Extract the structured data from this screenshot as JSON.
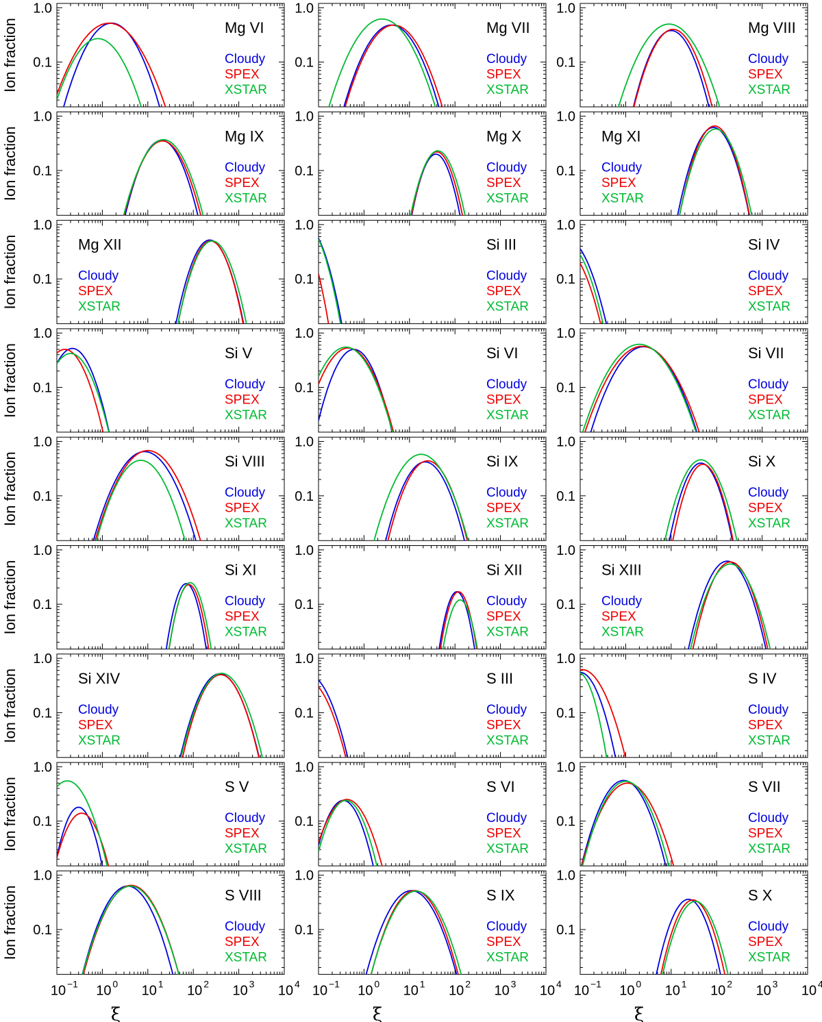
{
  "figure": {
    "y_axis_label": "Ion fraction",
    "x_axis_label": "ξ",
    "ytick_labels": [
      "1.0",
      "0.1"
    ],
    "xtick_exponents": [
      "−1",
      "0",
      "1",
      "2",
      "3",
      "4"
    ],
    "xtick_base": "10",
    "legend": [
      "Cloudy",
      "SPEX",
      "XSTAR"
    ]
  },
  "chart_data": {
    "type": "line",
    "xscale": "log",
    "yscale": "log",
    "xlim": [
      0.1,
      10000
    ],
    "ylim": [
      0.015,
      1.2
    ],
    "series_colors": {
      "Cloudy": "#0000dd",
      "SPEX": "#ee0000",
      "XSTAR": "#00bb33"
    },
    "note": "Each curve modeled as a log-parabola: fraction = peak * 10^(-((log10(xi) - log10(peak_xi)) / width)^2), width in decades",
    "panels": [
      {
        "ion": "Mg VI",
        "legend_side": "right",
        "series": [
          {
            "name": "Cloudy",
            "peak_xi": 1.6,
            "peak": 0.52,
            "width": 0.85
          },
          {
            "name": "SPEX",
            "peak_xi": 1.4,
            "peak": 0.52,
            "width": 1.0
          },
          {
            "name": "XSTAR",
            "peak_xi": 0.8,
            "peak": 0.27,
            "width": 0.85
          }
        ]
      },
      {
        "ion": "Mg VII",
        "legend_side": "right",
        "series": [
          {
            "name": "Cloudy",
            "peak_xi": 4.0,
            "peak": 0.48,
            "width": 0.85
          },
          {
            "name": "SPEX",
            "peak_xi": 4.5,
            "peak": 0.48,
            "width": 0.87
          },
          {
            "name": "XSTAR",
            "peak_xi": 2.5,
            "peak": 0.62,
            "width": 0.92
          }
        ]
      },
      {
        "ion": "Mg VIII",
        "legend_side": "right",
        "series": [
          {
            "name": "Cloudy",
            "peak_xi": 10,
            "peak": 0.38,
            "width": 0.7
          },
          {
            "name": "SPEX",
            "peak_xi": 11,
            "peak": 0.4,
            "width": 0.72
          },
          {
            "name": "XSTAR",
            "peak_xi": 9,
            "peak": 0.5,
            "width": 0.9
          }
        ]
      },
      {
        "ion": "Mg IX",
        "legend_side": "right",
        "series": [
          {
            "name": "Cloudy",
            "peak_xi": 20,
            "peak": 0.36,
            "width": 0.68
          },
          {
            "name": "SPEX",
            "peak_xi": 21,
            "peak": 0.35,
            "width": 0.72
          },
          {
            "name": "XSTAR",
            "peak_xi": 22,
            "peak": 0.37,
            "width": 0.74
          }
        ]
      },
      {
        "ion": "Mg X",
        "legend_side": "right",
        "series": [
          {
            "name": "Cloudy",
            "peak_xi": 38,
            "peak": 0.2,
            "width": 0.5
          },
          {
            "name": "SPEX",
            "peak_xi": 40,
            "peak": 0.22,
            "width": 0.52
          },
          {
            "name": "XSTAR",
            "peak_xi": 42,
            "peak": 0.23,
            "width": 0.55
          }
        ]
      },
      {
        "ion": "Mg XI",
        "legend_side": "left",
        "series": [
          {
            "name": "Cloudy",
            "peak_xi": 85,
            "peak": 0.62,
            "width": 0.62
          },
          {
            "name": "SPEX",
            "peak_xi": 90,
            "peak": 0.66,
            "width": 0.6
          },
          {
            "name": "XSTAR",
            "peak_xi": 95,
            "peak": 0.58,
            "width": 0.63
          }
        ]
      },
      {
        "ion": "Mg XII",
        "legend_side": "left",
        "series": [
          {
            "name": "Cloudy",
            "peak_xi": 230,
            "peak": 0.52,
            "width": 0.6
          },
          {
            "name": "SPEX",
            "peak_xi": 240,
            "peak": 0.5,
            "width": 0.58
          },
          {
            "name": "XSTAR",
            "peak_xi": 260,
            "peak": 0.5,
            "width": 0.61
          }
        ]
      },
      {
        "ion": "Si III",
        "legend_side": "right",
        "series": [
          {
            "name": "Cloudy",
            "peak_xi": 0.05,
            "peak": 1.0,
            "width": 0.6
          },
          {
            "name": "SPEX",
            "peak_xi": 0.03,
            "peak": 1.0,
            "width": 0.55
          },
          {
            "name": "XSTAR",
            "peak_xi": 0.05,
            "peak": 1.0,
            "width": 0.58
          }
        ]
      },
      {
        "ion": "Si IV",
        "legend_side": "right",
        "series": [
          {
            "name": "Cloudy",
            "peak_xi": 0.05,
            "peak": 0.55,
            "width": 0.7
          },
          {
            "name": "SPEX",
            "peak_xi": 0.045,
            "peak": 0.35,
            "width": 0.68
          },
          {
            "name": "XSTAR",
            "peak_xi": 0.05,
            "peak": 0.45,
            "width": 0.66
          }
        ]
      },
      {
        "ion": "Si V",
        "legend_side": "right",
        "series": [
          {
            "name": "Cloudy",
            "peak_xi": 0.22,
            "peak": 0.52,
            "width": 0.65
          },
          {
            "name": "SPEX",
            "peak_xi": 0.15,
            "peak": 0.5,
            "width": 0.68
          },
          {
            "name": "XSTAR",
            "peak_xi": 0.2,
            "peak": 0.42,
            "width": 0.7
          }
        ]
      },
      {
        "ion": "Si VI",
        "legend_side": "right",
        "series": [
          {
            "name": "Cloudy",
            "peak_xi": 0.6,
            "peak": 0.5,
            "width": 0.68
          },
          {
            "name": "SPEX",
            "peak_xi": 0.45,
            "peak": 0.53,
            "width": 0.8
          },
          {
            "name": "XSTAR",
            "peak_xi": 0.4,
            "peak": 0.55,
            "width": 0.82
          }
        ]
      },
      {
        "ion": "Si VII",
        "legend_side": "right",
        "series": [
          {
            "name": "Cloudy",
            "peak_xi": 2.5,
            "peak": 0.56,
            "width": 0.93
          },
          {
            "name": "SPEX",
            "peak_xi": 2.3,
            "peak": 0.57,
            "width": 1.0
          },
          {
            "name": "XSTAR",
            "peak_xi": 2.0,
            "peak": 0.62,
            "width": 0.98
          }
        ]
      },
      {
        "ion": "Si VIII",
        "legend_side": "right",
        "series": [
          {
            "name": "Cloudy",
            "peak_xi": 8.5,
            "peak": 0.65,
            "width": 0.88
          },
          {
            "name": "SPEX",
            "peak_xi": 10,
            "peak": 0.68,
            "width": 0.9
          },
          {
            "name": "XSTAR",
            "peak_xi": 7,
            "peak": 0.45,
            "width": 0.8
          }
        ]
      },
      {
        "ion": "Si IX",
        "legend_side": "right",
        "series": [
          {
            "name": "Cloudy",
            "peak_xi": 22,
            "peak": 0.42,
            "width": 0.72
          },
          {
            "name": "SPEX",
            "peak_xi": 25,
            "peak": 0.44,
            "width": 0.72
          },
          {
            "name": "XSTAR",
            "peak_xi": 18,
            "peak": 0.58,
            "width": 0.82
          }
        ]
      },
      {
        "ion": "Si X",
        "legend_side": "right",
        "series": [
          {
            "name": "Cloudy",
            "peak_xi": 45,
            "peak": 0.4,
            "width": 0.58
          },
          {
            "name": "SPEX",
            "peak_xi": 50,
            "peak": 0.38,
            "width": 0.56
          },
          {
            "name": "XSTAR",
            "peak_xi": 45,
            "peak": 0.46,
            "width": 0.65
          }
        ]
      },
      {
        "ion": "Si XI",
        "legend_side": "right",
        "series": [
          {
            "name": "Cloudy",
            "peak_xi": 70,
            "peak": 0.24,
            "width": 0.4
          },
          {
            "name": "SPEX",
            "peak_xi": 80,
            "peak": 0.23,
            "width": 0.4
          },
          {
            "name": "XSTAR",
            "peak_xi": 85,
            "peak": 0.25,
            "width": 0.42
          }
        ]
      },
      {
        "ion": "Si XII",
        "legend_side": "right",
        "series": [
          {
            "name": "Cloudy",
            "peak_xi": 110,
            "peak": 0.17,
            "width": 0.38
          },
          {
            "name": "SPEX",
            "peak_xi": 120,
            "peak": 0.17,
            "width": 0.39
          },
          {
            "name": "XSTAR",
            "peak_xi": 130,
            "peak": 0.12,
            "width": 0.4
          }
        ]
      },
      {
        "ion": "Si XIII",
        "legend_side": "left",
        "series": [
          {
            "name": "Cloudy",
            "peak_xi": 170,
            "peak": 0.62,
            "width": 0.67
          },
          {
            "name": "SPEX",
            "peak_xi": 200,
            "peak": 0.6,
            "width": 0.65
          },
          {
            "name": "XSTAR",
            "peak_xi": 200,
            "peak": 0.55,
            "width": 0.7
          }
        ]
      },
      {
        "ion": "Si XIV",
        "legend_side": "left",
        "series": [
          {
            "name": "Cloudy",
            "peak_xi": 380,
            "peak": 0.52,
            "width": 0.7
          },
          {
            "name": "SPEX",
            "peak_xi": 400,
            "peak": 0.5,
            "width": 0.68
          },
          {
            "name": "XSTAR",
            "peak_xi": 420,
            "peak": 0.53,
            "width": 0.72
          }
        ]
      },
      {
        "ion": "S III",
        "legend_side": "right",
        "series": [
          {
            "name": "Cloudy",
            "peak_xi": 0.06,
            "peak": 0.5,
            "width": 0.7
          },
          {
            "name": "SPEX",
            "peak_xi": 0.055,
            "peak": 0.4,
            "width": 0.72
          },
          {
            "name": "XSTAR",
            "peak_xi": 0.03,
            "peak": 0.4,
            "width": 0.32
          }
        ]
      },
      {
        "ion": "S IV",
        "legend_side": "right",
        "series": [
          {
            "name": "Cloudy",
            "peak_xi": 0.1,
            "peak": 0.55,
            "width": 0.62
          },
          {
            "name": "SPEX",
            "peak_xi": 0.11,
            "peak": 0.62,
            "width": 0.75
          },
          {
            "name": "XSTAR",
            "peak_xi": 0.09,
            "peak": 0.55,
            "width": 0.5
          }
        ]
      },
      {
        "ion": "S V",
        "legend_side": "right",
        "series": [
          {
            "name": "Cloudy",
            "peak_xi": 0.3,
            "peak": 0.18,
            "width": 0.5
          },
          {
            "name": "SPEX",
            "peak_xi": 0.35,
            "peak": 0.14,
            "width": 0.6
          },
          {
            "name": "XSTAR",
            "peak_xi": 0.17,
            "peak": 0.55,
            "width": 0.7
          }
        ]
      },
      {
        "ion": "S VI",
        "legend_side": "right",
        "series": [
          {
            "name": "Cloudy",
            "peak_xi": 0.35,
            "peak": 0.24,
            "width": 0.6
          },
          {
            "name": "SPEX",
            "peak_xi": 0.42,
            "peak": 0.25,
            "width": 0.7
          },
          {
            "name": "XSTAR",
            "peak_xi": 0.4,
            "peak": 0.24,
            "width": 0.62
          }
        ]
      },
      {
        "ion": "S VII",
        "legend_side": "right",
        "series": [
          {
            "name": "Cloudy",
            "peak_xi": 0.9,
            "peak": 0.56,
            "width": 0.74
          },
          {
            "name": "SPEX",
            "peak_xi": 1.1,
            "peak": 0.5,
            "width": 0.82
          },
          {
            "name": "XSTAR",
            "peak_xi": 1.0,
            "peak": 0.54,
            "width": 0.76
          }
        ]
      },
      {
        "ion": "S VIII",
        "legend_side": "right",
        "series": [
          {
            "name": "Cloudy",
            "peak_xi": 3.6,
            "peak": 0.63,
            "width": 0.78
          },
          {
            "name": "SPEX",
            "peak_xi": 4.3,
            "peak": 0.65,
            "width": 0.82
          },
          {
            "name": "XSTAR",
            "peak_xi": 4.2,
            "peak": 0.63,
            "width": 0.83
          }
        ]
      },
      {
        "ion": "S IX",
        "legend_side": "right",
        "series": [
          {
            "name": "Cloudy",
            "peak_xi": 11,
            "peak": 0.52,
            "width": 0.8
          },
          {
            "name": "SPEX",
            "peak_xi": 13,
            "peak": 0.52,
            "width": 0.77
          },
          {
            "name": "XSTAR",
            "peak_xi": 14,
            "peak": 0.51,
            "width": 0.8
          }
        ]
      },
      {
        "ion": "S X",
        "legend_side": "right",
        "series": [
          {
            "name": "Cloudy",
            "peak_xi": 24,
            "peak": 0.36,
            "width": 0.6
          },
          {
            "name": "SPEX",
            "peak_xi": 30,
            "peak": 0.35,
            "width": 0.6
          },
          {
            "name": "XSTAR",
            "peak_xi": 34,
            "peak": 0.33,
            "width": 0.62
          }
        ]
      }
    ]
  }
}
